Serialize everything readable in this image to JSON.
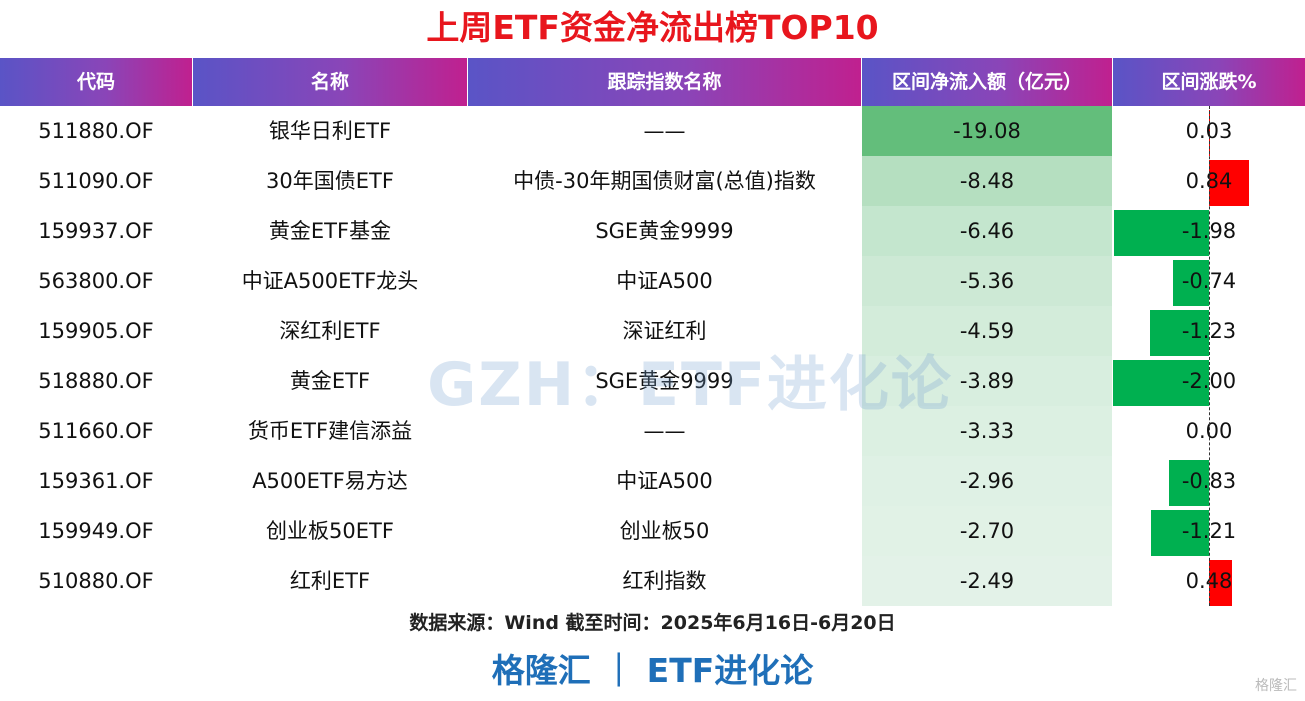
{
  "title": "上周ETF资金净流出榜TOP10",
  "headers": [
    "代码",
    "名称",
    "跟踪指数名称",
    "区间净流入额（亿元）",
    "区间涨跌%"
  ],
  "watermark": "GZH：ETF进化论",
  "source": "数据来源：Wind 截至时间：2025年6月16日-6月20日",
  "footer": "格隆汇 ｜ ETF进化论",
  "corner_mark": "格隆汇",
  "colors": {
    "up": "#ff0000",
    "down": "#00b050",
    "flow": "#63be7b",
    "title": "#e8161d",
    "footer": "#1f6fb8"
  },
  "chart_data": {
    "type": "table",
    "title": "上周ETF资金净流出榜TOP10",
    "columns": [
      "代码",
      "名称",
      "跟踪指数名称",
      "区间净流入额（亿元）",
      "区间涨跌%"
    ],
    "rows": [
      {
        "code": "511880.OF",
        "name": "银华日利ETF",
        "index": "——",
        "flow": -19.08,
        "flow_text": "-19.08",
        "change": 0.03,
        "change_text": "0.03"
      },
      {
        "code": "511090.OF",
        "name": "30年国债ETF",
        "index": "中债-30年期国债财富(总值)指数",
        "flow": -8.48,
        "flow_text": "-8.48",
        "change": 0.84,
        "change_text": "0.84"
      },
      {
        "code": "159937.OF",
        "name": "黄金ETF基金",
        "index": "SGE黄金9999",
        "flow": -6.46,
        "flow_text": "-6.46",
        "change": -1.98,
        "change_text": "-1.98"
      },
      {
        "code": "563800.OF",
        "name": "中证A500ETF龙头",
        "index": "中证A500",
        "flow": -5.36,
        "flow_text": "-5.36",
        "change": -0.74,
        "change_text": "-0.74"
      },
      {
        "code": "159905.OF",
        "name": "深红利ETF",
        "index": "深证红利",
        "flow": -4.59,
        "flow_text": "-4.59",
        "change": -1.23,
        "change_text": "-1.23"
      },
      {
        "code": "518880.OF",
        "name": "黄金ETF",
        "index": "SGE黄金9999",
        "flow": -3.89,
        "flow_text": "-3.89",
        "change": -2.0,
        "change_text": "-2.00"
      },
      {
        "code": "511660.OF",
        "name": "货币ETF建信添益",
        "index": "——",
        "flow": -3.33,
        "flow_text": "-3.33",
        "change": 0.0,
        "change_text": "0.00"
      },
      {
        "code": "159361.OF",
        "name": "A500ETF易方达",
        "index": "中证A500",
        "flow": -2.96,
        "flow_text": "-2.96",
        "change": -0.83,
        "change_text": "-0.83"
      },
      {
        "code": "159949.OF",
        "name": "创业板50ETF",
        "index": "创业板50",
        "flow": -2.7,
        "flow_text": "-2.70",
        "change": -1.21,
        "change_text": "-1.21"
      },
      {
        "code": "510880.OF",
        "name": "红利ETF",
        "index": "红利指数",
        "flow": -2.49,
        "flow_text": "-2.49",
        "change": 0.48,
        "change_text": "0.48"
      }
    ]
  }
}
